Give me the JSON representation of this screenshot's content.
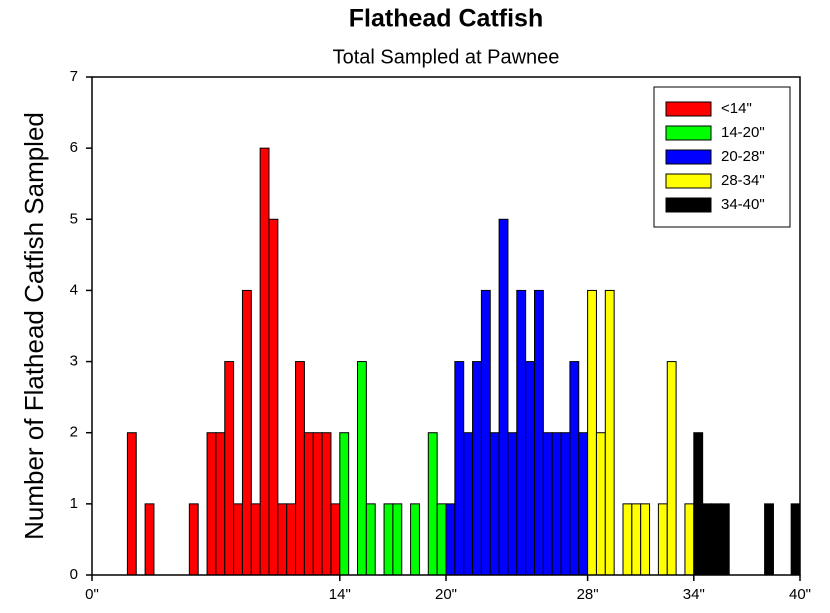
{
  "chart_data": {
    "type": "histogram",
    "title": "Flathead Catfish",
    "subtitle": "Total Sampled at Pawnee",
    "ylabel": "Number of Flathead Catfish Sampled",
    "xlim": [
      0,
      40
    ],
    "ylim": [
      0,
      7
    ],
    "xticks": [
      {
        "value": 0,
        "label": "0\""
      },
      {
        "value": 14,
        "label": "14\""
      },
      {
        "value": 20,
        "label": "20\""
      },
      {
        "value": 28,
        "label": "28\""
      },
      {
        "value": 34,
        "label": "34\""
      },
      {
        "value": 40,
        "label": "40\""
      }
    ],
    "yticks": [
      0,
      1,
      2,
      3,
      4,
      5,
      6,
      7
    ],
    "legend": "upper right",
    "series": [
      {
        "name": "<14\"",
        "color": "#ff0000",
        "bins": [
          0,
          0.5,
          1,
          1.5,
          2,
          2.5,
          3,
          3.5,
          4,
          4.5,
          5,
          5.5,
          6,
          6.5,
          7,
          7.5,
          8,
          8.5,
          9,
          9.5,
          10,
          10.5,
          11,
          11.5,
          12,
          12.5,
          13,
          13.5,
          14
        ],
        "values": [
          0,
          0,
          0,
          0,
          2,
          0,
          1,
          0,
          0,
          0,
          0,
          1,
          0,
          2,
          2,
          3,
          1,
          4,
          1,
          6,
          5,
          1,
          1,
          3,
          2,
          2,
          2,
          1
        ]
      },
      {
        "name": "14-20\"",
        "color": "#00ff00",
        "bins": [
          14,
          14.5,
          15,
          15.5,
          16,
          16.5,
          17,
          17.5,
          18,
          18.5,
          19,
          19.5,
          20
        ],
        "values": [
          2,
          0,
          3,
          1,
          0,
          1,
          1,
          0,
          1,
          0,
          2,
          1
        ]
      },
      {
        "name": "20-28\"",
        "color": "#0000ff",
        "bins": [
          20,
          20.5,
          21,
          21.5,
          22,
          22.5,
          23,
          23.5,
          24,
          24.5,
          25,
          25.5,
          26,
          26.5,
          27,
          27.5,
          28
        ],
        "values": [
          1,
          3,
          2,
          3,
          4,
          2,
          5,
          2,
          4,
          3,
          4,
          2,
          2,
          2,
          3,
          2
        ]
      },
      {
        "name": "28-34\"",
        "color": "#ffff00",
        "bins": [
          28,
          28.5,
          29,
          29.5,
          30,
          30.5,
          31,
          31.5,
          32,
          32.5,
          33,
          33.5,
          34
        ],
        "values": [
          4,
          2,
          4,
          0,
          1,
          1,
          1,
          0,
          1,
          3,
          0,
          1
        ]
      },
      {
        "name": "34-40\"",
        "color": "#000000",
        "bins": [
          34,
          34.5,
          35,
          35.5,
          36,
          36.5,
          37,
          37.5,
          38,
          38.5,
          39,
          39.5,
          40
        ],
        "values": [
          2,
          1,
          1,
          1,
          0,
          0,
          0,
          0,
          1,
          0,
          0,
          1
        ]
      }
    ]
  }
}
